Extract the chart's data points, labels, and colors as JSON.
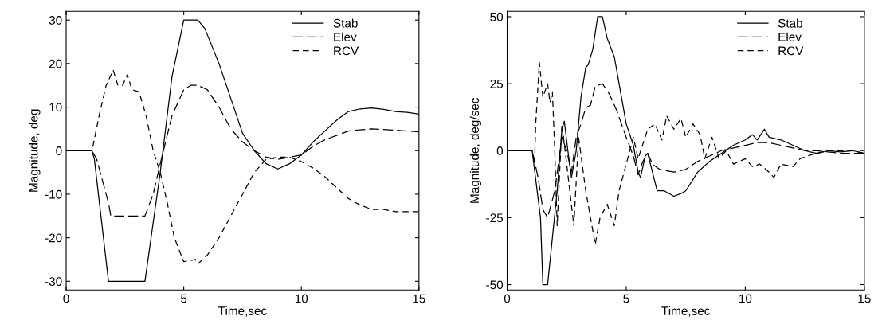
{
  "chart_data": [
    {
      "type": "line",
      "xlabel": "Time,sec",
      "ylabel": "Magnitude, deg",
      "xlim": [
        0,
        15
      ],
      "ylim": [
        -32,
        32
      ],
      "xticks": [
        0,
        5,
        10,
        15
      ],
      "yticks": [
        -30,
        -20,
        -10,
        0,
        10,
        20,
        30
      ],
      "grid": false,
      "legend": "top right",
      "marker": "none",
      "series": [
        {
          "name": "Stab",
          "color": "#000000",
          "line_style": "solid",
          "x": [
            0,
            1.1,
            1.2,
            1.8,
            3.35,
            4,
            4.5,
            5,
            5.6,
            5.9,
            6.5,
            7,
            7.5,
            8,
            8.5,
            9,
            9.5,
            10,
            10.5,
            11,
            11.5,
            12,
            12.5,
            13,
            13.5,
            14,
            14.5,
            15
          ],
          "values": [
            0,
            0,
            -2,
            -30,
            -30,
            -5,
            17,
            30,
            30,
            28,
            20,
            12,
            4,
            0,
            -3,
            -4.2,
            -3,
            -1,
            2,
            4.5,
            7,
            9,
            9.6,
            9.8,
            9.5,
            9,
            8.8,
            8.4
          ]
        },
        {
          "name": "Elev",
          "color": "#000000",
          "line_style": "dashed",
          "x": [
            0,
            1.1,
            1.3,
            1.8,
            1.9,
            3.35,
            3.7,
            4,
            4.5,
            5,
            5.3,
            5.6,
            6,
            6.5,
            7,
            7.5,
            8,
            8.5,
            9,
            9.5,
            10,
            10.5,
            11,
            11.5,
            12,
            12.5,
            13,
            14,
            15
          ],
          "values": [
            0,
            0,
            -2,
            -12,
            -15,
            -15,
            -10,
            -3,
            8,
            14,
            15,
            15,
            14,
            10,
            5,
            2,
            0,
            -1.5,
            -2,
            -1.5,
            -1,
            1,
            2.5,
            3.5,
            4.5,
            4.8,
            5,
            4.7,
            4.3
          ]
        },
        {
          "name": "RCV",
          "color": "#000000",
          "line_style": "dashed",
          "x": [
            0,
            1.1,
            1.4,
            1.7,
            2,
            2.2,
            2.4,
            2.6,
            2.8,
            3.1,
            3.4,
            3.7,
            4,
            4.3,
            4.6,
            5,
            5.5,
            5.6,
            6,
            6.5,
            7,
            7.5,
            8,
            8.5,
            9,
            9.5,
            10,
            10.5,
            11,
            11.5,
            12,
            12.5,
            13,
            13.5,
            14,
            14.5,
            15
          ],
          "values": [
            0,
            0,
            8,
            15,
            18.5,
            15,
            15,
            17.5,
            14,
            13.5,
            8,
            0,
            -5,
            -12,
            -20,
            -25.5,
            -25,
            -26,
            -24,
            -20,
            -15,
            -10,
            -5,
            -2,
            -1.5,
            -1.5,
            -2.5,
            -4,
            -6,
            -8.5,
            -11,
            -12.5,
            -13.5,
            -13.5,
            -14,
            -14,
            -14
          ]
        }
      ]
    },
    {
      "type": "line",
      "xlabel": "Time,sec",
      "ylabel": "Magnitude, deg/sec",
      "xlim": [
        0,
        15
      ],
      "ylim": [
        -52,
        52
      ],
      "xticks": [
        0,
        5,
        10,
        15
      ],
      "yticks": [
        -50,
        -25,
        0,
        25,
        50
      ],
      "grid": false,
      "legend": "top right",
      "marker": "none",
      "series": [
        {
          "name": "Stab",
          "color": "#000000",
          "line_style": "solid",
          "x": [
            0,
            1.05,
            1.4,
            1.5,
            1.7,
            2.1,
            2.3,
            2.4,
            2.55,
            2.7,
            2.9,
            3.1,
            3.3,
            3.4,
            3.6,
            3.8,
            4,
            4.2,
            4.5,
            4.8,
            5,
            5.3,
            5.5,
            5.6,
            5.8,
            5.9,
            6.1,
            6.3,
            6.6,
            7,
            7.3,
            7.5,
            8,
            8.5,
            9,
            9.5,
            10,
            10.3,
            10.5,
            10.8,
            11,
            11.5,
            12,
            12.5,
            13,
            13.5,
            14,
            14.5,
            15
          ],
          "values": [
            0,
            0,
            -25,
            -50,
            -50,
            -15,
            8,
            11,
            0,
            -10,
            0,
            20,
            31,
            32,
            38,
            50,
            50,
            42,
            35,
            20,
            10,
            2,
            -8,
            -10,
            -2,
            -1,
            -8,
            -15,
            -15,
            -17,
            -16,
            -15,
            -8,
            -4,
            -1,
            2,
            4,
            6,
            4,
            8,
            5,
            4,
            2,
            0,
            -1,
            0,
            -0.5,
            0,
            -1
          ]
        },
        {
          "name": "Elev",
          "color": "#000000",
          "line_style": "dashed",
          "x": [
            0,
            1.05,
            1.3,
            1.5,
            1.7,
            2,
            2.3,
            2.5,
            2.7,
            2.9,
            3.1,
            3.3,
            3.5,
            3.7,
            4,
            4.3,
            4.6,
            5,
            5.3,
            5.5,
            5.7,
            5.9,
            6.1,
            6.4,
            7,
            7.5,
            8,
            8.5,
            9,
            9.5,
            10,
            10.5,
            11,
            11.5,
            12,
            12.5,
            13,
            14,
            15
          ],
          "values": [
            0,
            0,
            -10,
            -22,
            -25,
            -15,
            5,
            0,
            -8,
            5,
            10,
            16,
            17,
            24,
            25,
            21,
            15,
            5,
            -2,
            -9,
            -4,
            -1,
            -5,
            -7,
            -8,
            -7,
            -4,
            -2,
            0,
            1,
            2,
            3,
            3,
            2,
            1,
            0,
            0,
            -1,
            -1
          ]
        },
        {
          "name": "RCV",
          "color": "#000000",
          "line_style": "dashed",
          "x": [
            0,
            1.05,
            1.15,
            1.2,
            1.3,
            1.35,
            1.5,
            1.7,
            1.8,
            1.9,
            2,
            2.1,
            2.3,
            2.5,
            2.8,
            3,
            3.3,
            3.6,
            3.7,
            3.9,
            4.2,
            4.5,
            4.7,
            5,
            5.3,
            5.5,
            5.9,
            6.2,
            6.5,
            6.7,
            7,
            7.3,
            7.5,
            7.8,
            8.1,
            8.3,
            8.6,
            8.9,
            9.2,
            9.5,
            10,
            10.3,
            10.6,
            11,
            11.2,
            11.5,
            12,
            12.3,
            12.6,
            13,
            13.5,
            14,
            14.5,
            15
          ],
          "values": [
            0,
            0,
            -5,
            10,
            25,
            33,
            20,
            25,
            18,
            22,
            0,
            -28,
            10,
            -5,
            -28,
            5,
            -15,
            -30,
            -35,
            -25,
            -20,
            -28,
            -15,
            -5,
            5,
            -3,
            8,
            10,
            4,
            13,
            8,
            12,
            5,
            10,
            6,
            -3,
            5,
            -3,
            0,
            -5,
            -3,
            -6,
            -5,
            -8,
            -10,
            -5,
            -6,
            -3,
            -2,
            -1,
            0,
            0,
            0,
            -1
          ]
        }
      ]
    }
  ]
}
